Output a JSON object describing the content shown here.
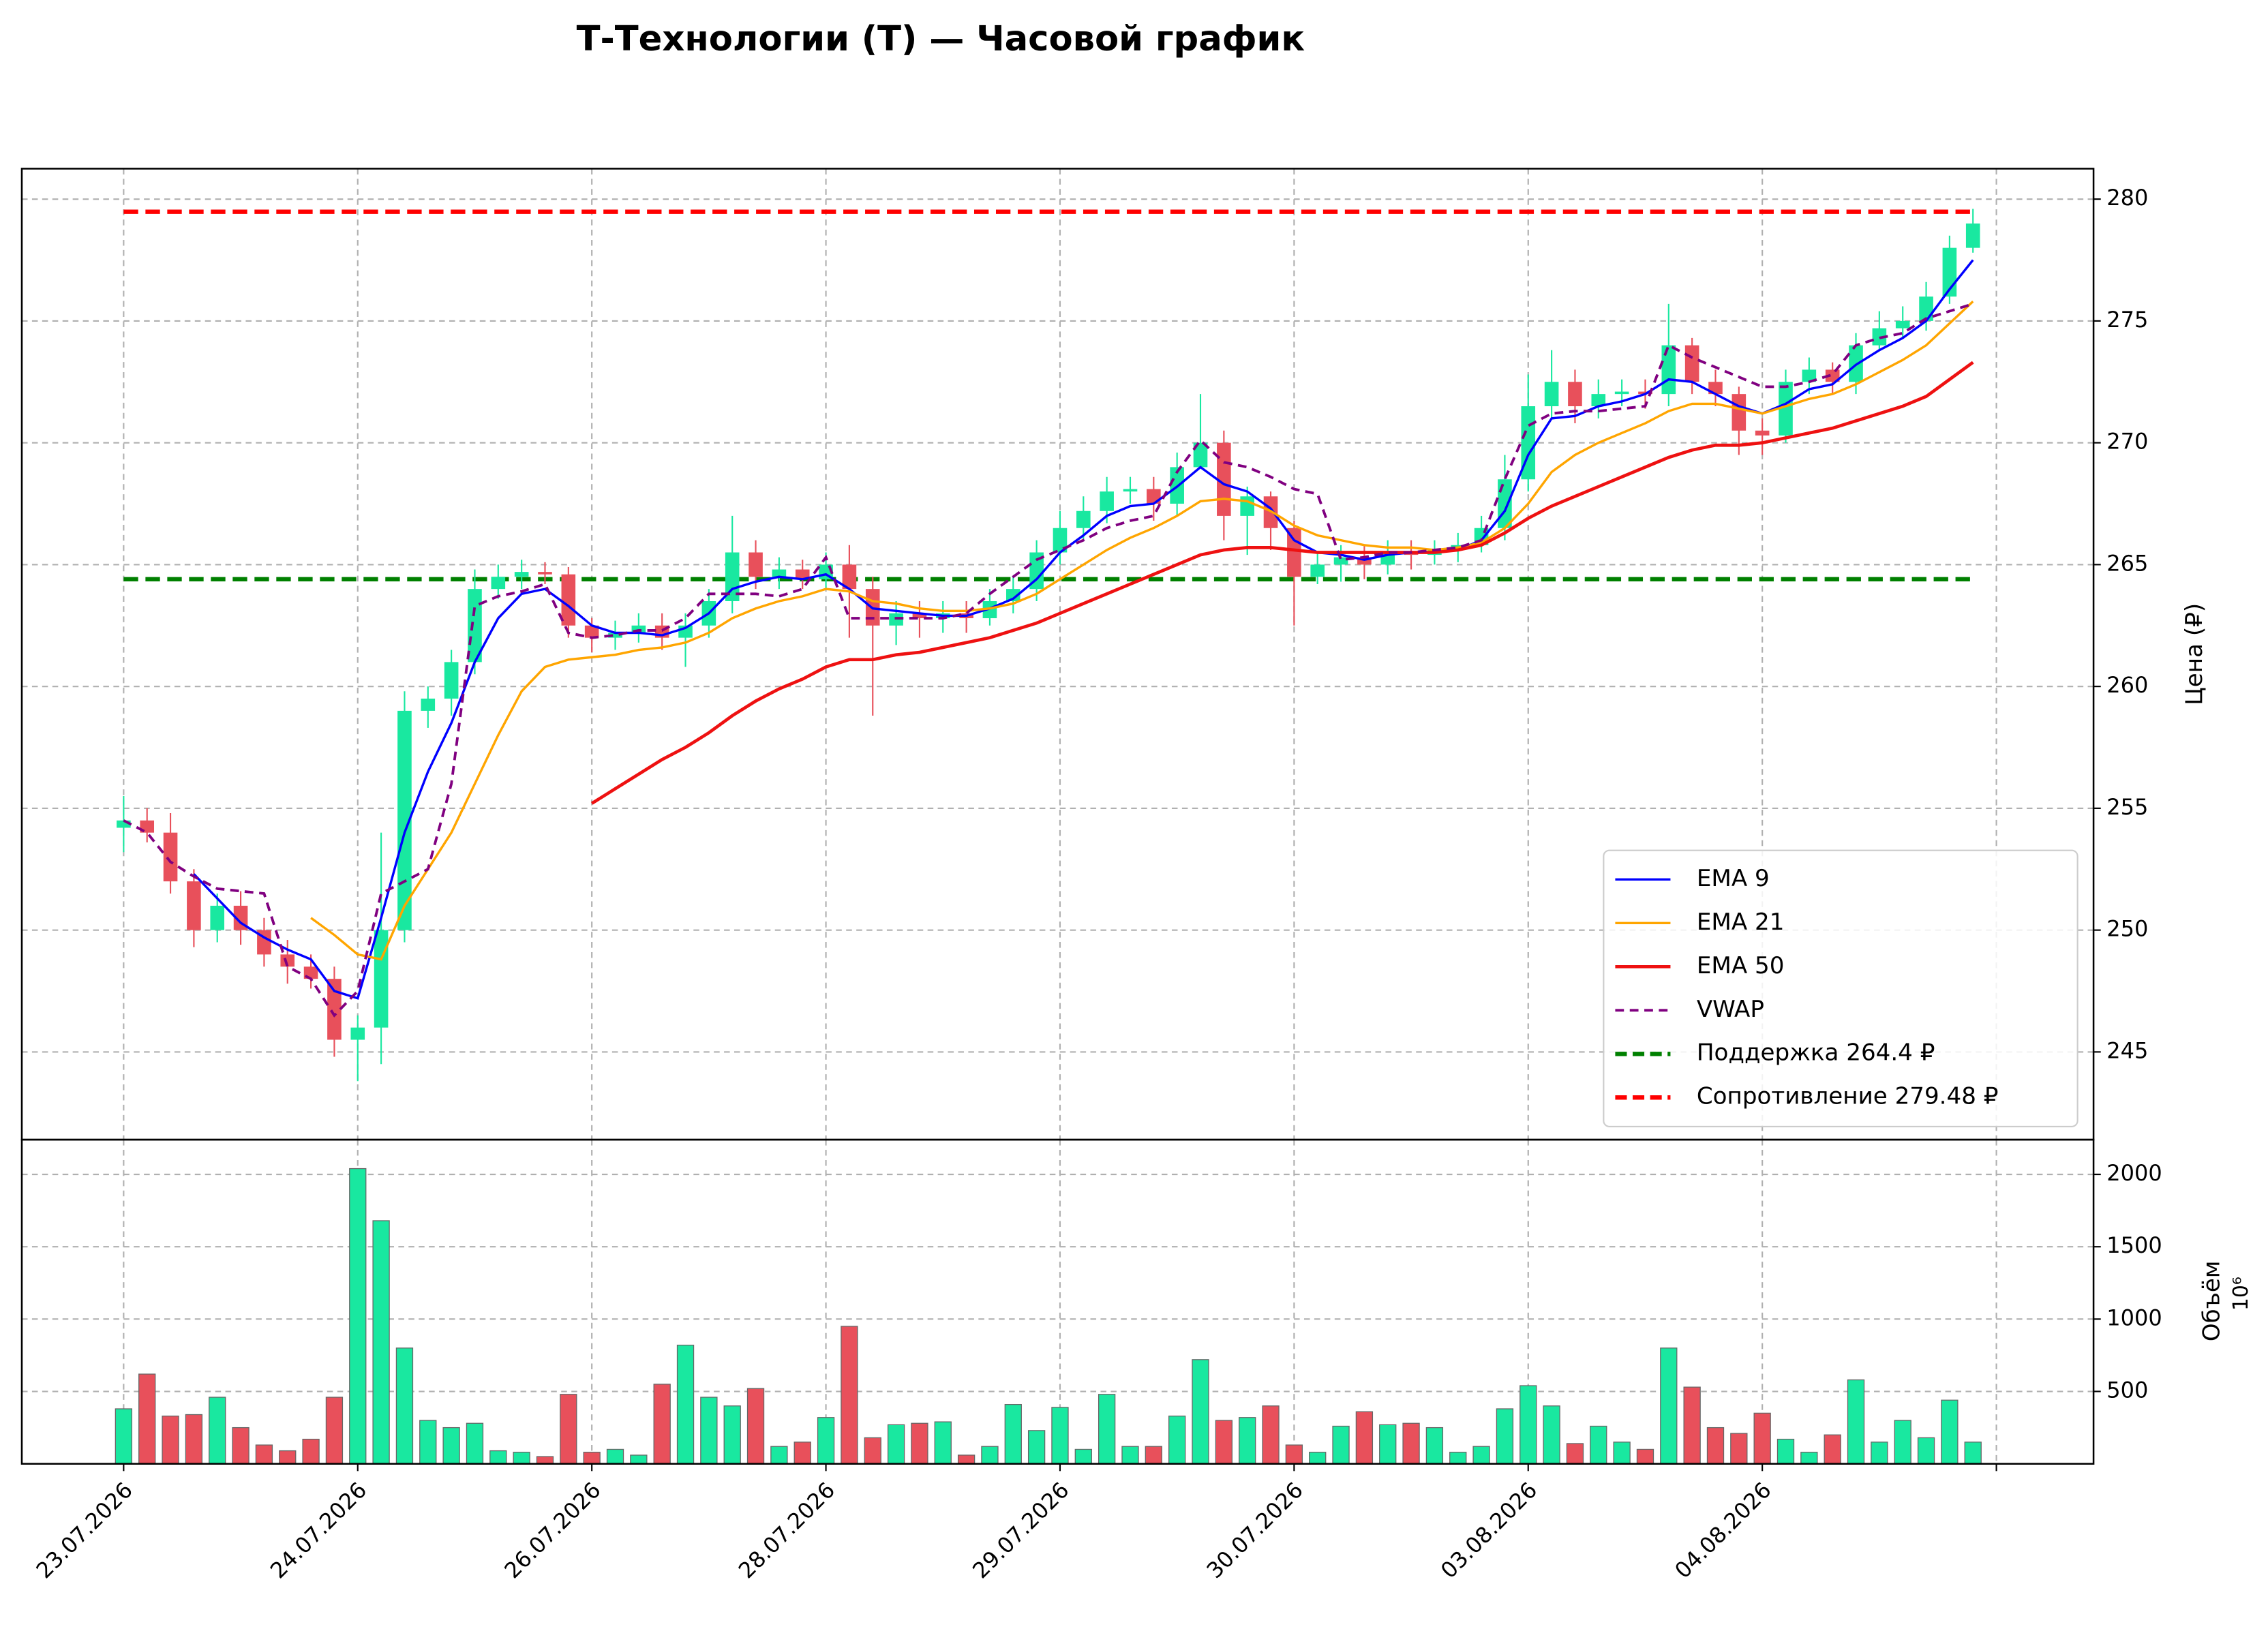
{
  "chart_data": {
    "type": "candlestick",
    "title": "Т-Технологии (T) — Часовой график",
    "ylabel": "Цена (₽)",
    "volume_label": "Объём",
    "volume_offset": "10⁶",
    "up_color": "#19e8a0",
    "down_color": "#e8505b",
    "grid": true,
    "legend": "lower right",
    "xlim": [
      -8.7,
      168.3
    ],
    "ylim": [
      241.4,
      281.25
    ],
    "volume_ylim": [
      0,
      2240
    ],
    "xticks": [
      {
        "value": 0,
        "label": "23.07.2026"
      },
      {
        "value": 20,
        "label": "24.07.2026"
      },
      {
        "value": 40,
        "label": "26.07.2026"
      },
      {
        "value": 60,
        "label": "28.07.2026"
      },
      {
        "value": 80,
        "label": "29.07.2026"
      },
      {
        "value": 100,
        "label": "30.07.2026"
      },
      {
        "value": 120,
        "label": "03.08.2026"
      },
      {
        "value": 140,
        "label": "04.08.2026"
      },
      {
        "value": 160,
        "label": null
      }
    ],
    "yticks": [
      245,
      250,
      255,
      260,
      265,
      270,
      275,
      280
    ],
    "volume_ticks": [
      500,
      1000,
      1500,
      2000
    ],
    "x": [
      0,
      2,
      4,
      6,
      8,
      10,
      12,
      14,
      16,
      18,
      20,
      22,
      24,
      26,
      28,
      30,
      32,
      34,
      36,
      38,
      40,
      42,
      44,
      46,
      48,
      50,
      52,
      54,
      56,
      58,
      60,
      62,
      64,
      66,
      68,
      70,
      72,
      74,
      76,
      78,
      80,
      82,
      84,
      86,
      88,
      90,
      92,
      94,
      96,
      98,
      100,
      102,
      104,
      106,
      108,
      110,
      112,
      114,
      116,
      118,
      120,
      122,
      124,
      126,
      128,
      130,
      132,
      134,
      136,
      138,
      140,
      142,
      144,
      146,
      148,
      150,
      152,
      154,
      156,
      158
    ],
    "open": [
      254.2,
      254.5,
      254,
      252,
      250,
      251,
      250,
      249,
      248.5,
      248,
      245.5,
      246,
      250,
      259,
      259.5,
      261,
      264,
      264.5,
      264.7,
      264.6,
      262.5,
      262,
      262.2,
      262.5,
      262,
      262.5,
      263.5,
      265.5,
      264.5,
      264.8,
      264.4,
      265,
      264,
      262.5,
      263,
      262.8,
      263,
      262.8,
      263.5,
      264,
      265.5,
      266.5,
      267.2,
      268,
      268.1,
      267.5,
      269,
      270,
      267,
      267.8,
      266.5,
      264.5,
      265,
      265.3,
      265,
      265.5,
      265.4,
      265.6,
      265.8,
      266.5,
      268.5,
      271.5,
      272.5,
      271.5,
      272,
      272.1,
      272,
      274,
      272.5,
      272,
      270.5,
      270.3,
      272.5,
      273,
      272.5,
      274,
      274.7,
      275,
      276,
      278
    ],
    "high": [
      255.5,
      255,
      254.8,
      252.5,
      251.5,
      251.6,
      250.5,
      249.6,
      249,
      248.5,
      246.5,
      254,
      259.8,
      260,
      261.5,
      264.8,
      265,
      265.2,
      265.1,
      264.9,
      262.8,
      262.7,
      263,
      263,
      263,
      264,
      267,
      266,
      265.3,
      265.2,
      265.5,
      265.8,
      264.5,
      263.5,
      263.5,
      263.5,
      263.5,
      264,
      264.5,
      266,
      267.2,
      267.8,
      268.6,
      268.6,
      268.6,
      269.6,
      272,
      270.5,
      268.2,
      268,
      266.8,
      265.5,
      265.8,
      265.8,
      266,
      266,
      266,
      266.3,
      267,
      269.5,
      272.8,
      273.8,
      273,
      272.6,
      272.6,
      272.6,
      275.7,
      274.3,
      273,
      272.3,
      271,
      273,
      273.5,
      273.3,
      274.5,
      275.4,
      275.6,
      276.6,
      278.5,
      279.6
    ],
    "low": [
      253.2,
      253.6,
      251.5,
      249.3,
      249.5,
      249.4,
      248.5,
      247.8,
      247.6,
      244.8,
      243.8,
      244.5,
      249.5,
      258.3,
      258.8,
      260.5,
      263.6,
      264,
      264.2,
      262,
      261.4,
      261.5,
      261.8,
      261.5,
      260.8,
      262,
      263,
      264,
      264,
      264,
      264,
      262,
      258.8,
      261.7,
      262,
      262.2,
      262.2,
      262.5,
      263,
      263.5,
      265,
      266,
      266.7,
      267.5,
      266.8,
      267,
      269.3,
      266,
      265.4,
      265.6,
      262.5,
      264.2,
      264.3,
      264.4,
      264.6,
      264.8,
      265,
      265.1,
      265.5,
      266,
      268,
      271,
      270.8,
      271,
      271.5,
      271.4,
      271.5,
      272,
      271.5,
      269.5,
      269.5,
      270,
      272,
      272,
      272,
      273.8,
      274.3,
      274.6,
      275.7,
      277.8
    ],
    "close": [
      254.5,
      254,
      252,
      250,
      251,
      250,
      249,
      248.5,
      248,
      245.5,
      246,
      250,
      259,
      259.5,
      261,
      264,
      264.5,
      264.7,
      264.6,
      262.5,
      262,
      262.2,
      262.5,
      262,
      262.5,
      263.5,
      265.5,
      264.5,
      264.8,
      264.4,
      265,
      264,
      262.5,
      263,
      262.8,
      263,
      262.8,
      263.5,
      264,
      265.5,
      266.5,
      267.2,
      268,
      268.1,
      267.5,
      269,
      270,
      267,
      267.8,
      266.5,
      264.5,
      265,
      265.3,
      265,
      265.5,
      265.4,
      265.6,
      265.8,
      266.5,
      268.5,
      271.5,
      272.5,
      271.5,
      272,
      272.1,
      272,
      274,
      272.5,
      272,
      270.5,
      270.3,
      272.5,
      273,
      272.5,
      274,
      274.7,
      275,
      276,
      278,
      279
    ],
    "volume": [
      380,
      620,
      330,
      340,
      460,
      250,
      130,
      90,
      170,
      460,
      2040,
      1680,
      800,
      300,
      250,
      280,
      90,
      80,
      50,
      480,
      80,
      100,
      60,
      550,
      820,
      460,
      400,
      520,
      120,
      150,
      320,
      950,
      180,
      270,
      280,
      290,
      60,
      120,
      410,
      230,
      390,
      100,
      480,
      120,
      120,
      330,
      720,
      300,
      320,
      400,
      130,
      80,
      260,
      360,
      270,
      280,
      250,
      80,
      120,
      380,
      540,
      400,
      140,
      260,
      150,
      100,
      800,
      530,
      250,
      210,
      350,
      170,
      80,
      200,
      580,
      150,
      300,
      180,
      440,
      150
    ],
    "series": [
      {
        "name": "EMA 9",
        "color": "#0000ff",
        "dashed": false,
        "width": 1.6,
        "values": [
          null,
          null,
          null,
          252.3,
          251.3,
          250.3,
          249.7,
          249.2,
          248.8,
          247.5,
          247.2,
          250.5,
          254,
          256.5,
          258.5,
          261,
          262.8,
          263.8,
          264,
          263.3,
          262.5,
          262.2,
          262.2,
          262.1,
          262.4,
          263,
          264,
          264.3,
          264.5,
          264.4,
          264.6,
          264,
          263.2,
          263.1,
          263,
          262.9,
          262.9,
          263.2,
          263.6,
          264.4,
          265.5,
          266.2,
          267,
          267.4,
          267.5,
          268.2,
          269,
          268.3,
          268,
          267.3,
          266,
          265.5,
          265.4,
          265.2,
          265.4,
          265.5,
          265.5,
          265.6,
          266,
          267.2,
          269.5,
          271,
          271.1,
          271.5,
          271.7,
          272,
          272.6,
          272.5,
          272,
          271.5,
          271.2,
          271.6,
          272.2,
          272.4,
          273.2,
          273.8,
          274.3,
          275,
          276.3,
          277.5
        ]
      },
      {
        "name": "EMA 21",
        "color": "#ffa500",
        "dashed": false,
        "width": 1.6,
        "values": [
          null,
          null,
          null,
          null,
          null,
          null,
          null,
          null,
          250.5,
          249.8,
          249,
          248.8,
          251,
          252.5,
          254,
          256,
          258,
          259.8,
          260.8,
          261.1,
          261.2,
          261.3,
          261.5,
          261.6,
          261.8,
          262.2,
          262.8,
          263.2,
          263.5,
          263.7,
          264,
          263.9,
          263.5,
          263.4,
          263.2,
          263.1,
          263.1,
          263.2,
          263.4,
          263.8,
          264.4,
          265,
          265.6,
          266.1,
          266.5,
          267,
          267.6,
          267.7,
          267.6,
          267.2,
          266.6,
          266.2,
          266,
          265.8,
          265.7,
          265.7,
          265.6,
          265.7,
          265.9,
          266.5,
          267.5,
          268.8,
          269.5,
          270,
          270.4,
          270.8,
          271.3,
          271.6,
          271.6,
          271.4,
          271.2,
          271.5,
          271.8,
          272,
          272.4,
          272.9,
          273.4,
          274,
          274.9,
          275.8
        ]
      },
      {
        "name": "EMA 50",
        "color": "#ee1111",
        "dashed": false,
        "width": 2.2,
        "values": [
          null,
          null,
          null,
          null,
          null,
          null,
          null,
          null,
          null,
          null,
          null,
          null,
          null,
          null,
          null,
          null,
          null,
          null,
          null,
          null,
          255.2,
          255.8,
          256.4,
          257,
          257.5,
          258.1,
          258.8,
          259.4,
          259.9,
          260.3,
          260.8,
          261.1,
          261.1,
          261.3,
          261.4,
          261.6,
          261.8,
          262,
          262.3,
          262.6,
          263,
          263.4,
          263.8,
          264.2,
          264.6,
          265,
          265.4,
          265.6,
          265.7,
          265.7,
          265.6,
          265.5,
          265.5,
          265.5,
          265.5,
          265.5,
          265.5,
          265.6,
          265.8,
          266.3,
          266.9,
          267.4,
          267.8,
          268.2,
          268.6,
          269,
          269.4,
          269.7,
          269.9,
          269.9,
          270,
          270.2,
          270.4,
          270.6,
          270.9,
          271.2,
          271.5,
          271.9,
          272.6,
          273.3
        ]
      },
      {
        "name": "VWAP",
        "color": "#800080",
        "dashed": true,
        "width": 1.8,
        "values": [
          254.5,
          254,
          252.8,
          252.2,
          251.7,
          251.6,
          251.5,
          248.5,
          248,
          246.5,
          247.5,
          251.5,
          252,
          252.5,
          256,
          263.3,
          263.7,
          263.9,
          264.2,
          262.2,
          262,
          262.1,
          262.3,
          262.3,
          262.8,
          263.8,
          263.8,
          263.8,
          263.7,
          264,
          265.3,
          262.8,
          262.8,
          262.8,
          262.8,
          262.8,
          263,
          263.8,
          264.5,
          265.2,
          265.6,
          266,
          266.5,
          266.8,
          267,
          268.8,
          270.1,
          269.2,
          269,
          268.6,
          268.1,
          267.9,
          265.2,
          265.3,
          265.5,
          265.5,
          265.6,
          265.7,
          266,
          268.5,
          270.7,
          271.2,
          271.3,
          271.3,
          271.4,
          271.5,
          274,
          273.5,
          273.1,
          272.7,
          272.3,
          272.3,
          272.5,
          272.8,
          274,
          274.3,
          274.5,
          275.1,
          275.4,
          275.7
        ]
      }
    ],
    "levels": [
      {
        "name": "Поддержка 264.4 ₽",
        "value": 264.4,
        "color": "#008000"
      },
      {
        "name": "Сопротивление 279.48 ₽",
        "value": 279.48,
        "color": "#ff0000"
      }
    ]
  }
}
